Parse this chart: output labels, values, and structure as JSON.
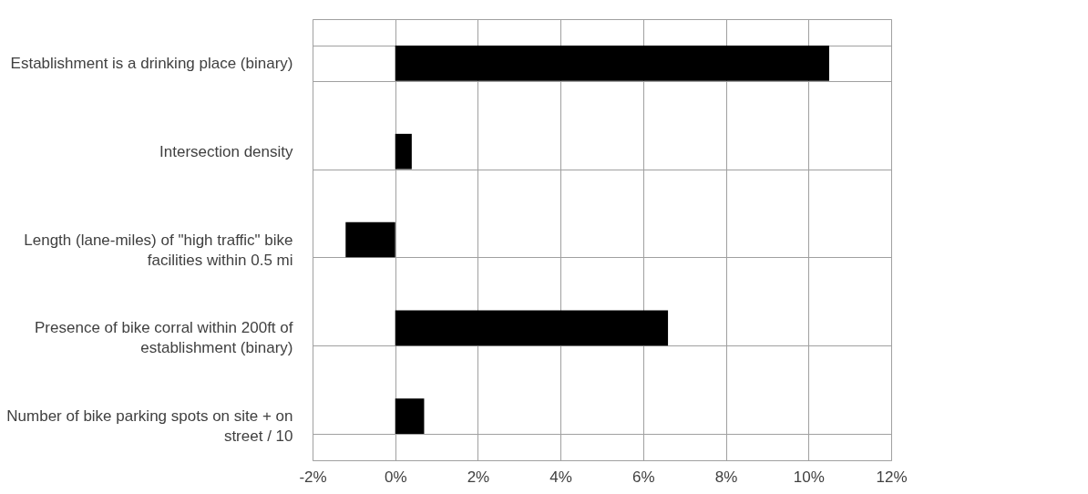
{
  "chart_data": {
    "type": "bar",
    "orientation": "horizontal",
    "categories": [
      "Establishment is a drinking place (binary)",
      "Intersection density",
      "Length (lane-miles) of \"high traffic\" bike facilities within 0.5 mi",
      "Presence of bike corral within 200ft of establishment (binary)",
      "Number of bike parking spots on site + on street / 10"
    ],
    "values": [
      10.5,
      0.4,
      -1.2,
      6.6,
      0.7
    ],
    "color": "#000000",
    "xlim": [
      -2,
      12
    ],
    "xticks": [
      {
        "value": -2,
        "label": "-2%"
      },
      {
        "value": 0,
        "label": "0%"
      },
      {
        "value": 2,
        "label": "2%"
      },
      {
        "value": 4,
        "label": "4%"
      },
      {
        "value": 6,
        "label": "6%"
      },
      {
        "value": 8,
        "label": "8%"
      },
      {
        "value": 10,
        "label": "10%"
      },
      {
        "value": 12,
        "label": "12%"
      }
    ],
    "grid": true
  }
}
